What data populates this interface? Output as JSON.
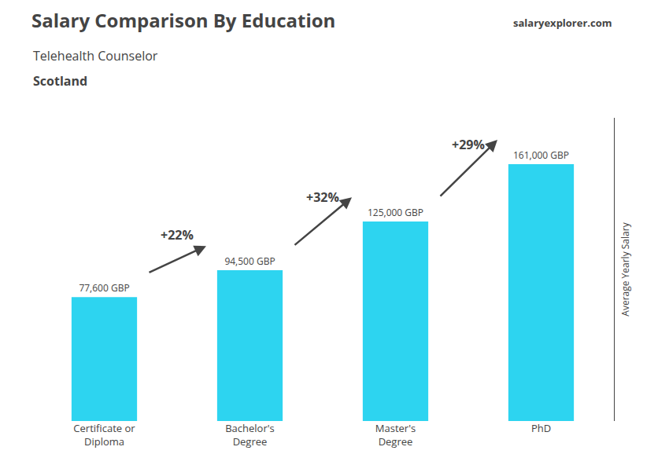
{
  "chart_data": {
    "type": "bar",
    "title": "Salary Comparison By Education",
    "subtitle": "Telehealth Counselor",
    "ylabel": "Average Yearly Salary",
    "categories": [
      "Certificate or\nDiploma",
      "Bachelor's\nDegree",
      "Master's\nDegree",
      "PhD"
    ],
    "values": [
      77600,
      94500,
      125000,
      161000
    ],
    "value_labels": [
      "77,600 GBP",
      "94,500 GBP",
      "125,000 GBP",
      "161,000 GBP"
    ],
    "data_labels": true,
    "color": "#2DD4F0",
    "ylim": [
      0,
      190000
    ],
    "yticks": [],
    "tick_labels": "x",
    "grid": false,
    "annotations": [
      {
        "text": "Scotland"
      },
      {
        "text": "salaryexplorer.com"
      },
      {
        "text": "+22%",
        "between": [
          0,
          1
        ]
      },
      {
        "text": "+32%",
        "between": [
          1,
          2
        ]
      },
      {
        "text": "+29%",
        "between": [
          2,
          3
        ]
      }
    ]
  }
}
